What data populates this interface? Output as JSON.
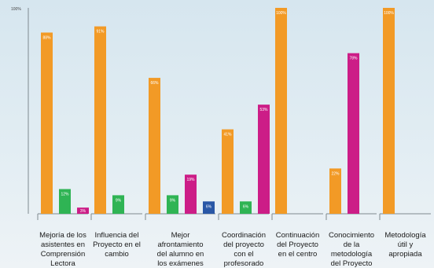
{
  "chart_data": {
    "type": "bar",
    "title": "",
    "xlabel": "",
    "ylabel": "",
    "y_axis_label": "100%",
    "ylim": [
      0,
      100
    ],
    "grid": false,
    "legend": "none",
    "colors": {
      "orange": "#f29a26",
      "green": "#2fb454",
      "magenta": "#cc1d87",
      "blue": "#2957a6",
      "axis": "#7f8a90"
    },
    "categories": [
      {
        "label_lines": [
          "Mejoría de los",
          "asistentes en",
          "Comprensión",
          "Lectora"
        ],
        "bars": [
          {
            "color": "orange",
            "value": 88,
            "label": "88%"
          },
          {
            "color": "green",
            "value": 12,
            "label": "12%"
          },
          {
            "color": "magenta",
            "value": 3,
            "label": "3%"
          }
        ]
      },
      {
        "label_lines": [
          "Influencia del",
          "Proyecto en el",
          "cambio"
        ],
        "bars": [
          {
            "color": "orange",
            "value": 91,
            "label": "91%"
          },
          {
            "color": "green",
            "value": 9,
            "label": "9%"
          }
        ]
      },
      {
        "label_lines": [
          "Mejor",
          "afrontamiento",
          "del alumno en",
          "los exámenes"
        ],
        "bars": [
          {
            "color": "orange",
            "value": 66,
            "label": "66%"
          },
          {
            "color": "green",
            "value": 9,
            "label": "9%"
          },
          {
            "color": "magenta",
            "value": 19,
            "label": "19%"
          },
          {
            "color": "blue",
            "value": 6,
            "label": "6%"
          }
        ]
      },
      {
        "label_lines": [
          "Coordinación",
          "del proyecto",
          "con el",
          "profesorado"
        ],
        "bars": [
          {
            "color": "orange",
            "value": 41,
            "label": "41%"
          },
          {
            "color": "green",
            "value": 6,
            "label": "6%"
          },
          {
            "color": "magenta",
            "value": 53,
            "label": "53%"
          }
        ]
      },
      {
        "label_lines": [
          "Continuación",
          "del Proyecto",
          "en el centro"
        ],
        "bars": [
          {
            "color": "orange",
            "value": 100,
            "label": "100%"
          }
        ]
      },
      {
        "label_lines": [
          "Conocimiento",
          "de la",
          "metodología",
          "del Proyecto"
        ],
        "bars": [
          {
            "color": "orange",
            "value": 22,
            "label": "22%"
          },
          {
            "color": "magenta",
            "value": 78,
            "label": "78%"
          }
        ]
      },
      {
        "label_lines": [
          "Metodología",
          "útil y",
          "apropiada"
        ],
        "bars": [
          {
            "color": "orange",
            "value": 100,
            "label": "100%"
          }
        ]
      }
    ]
  }
}
